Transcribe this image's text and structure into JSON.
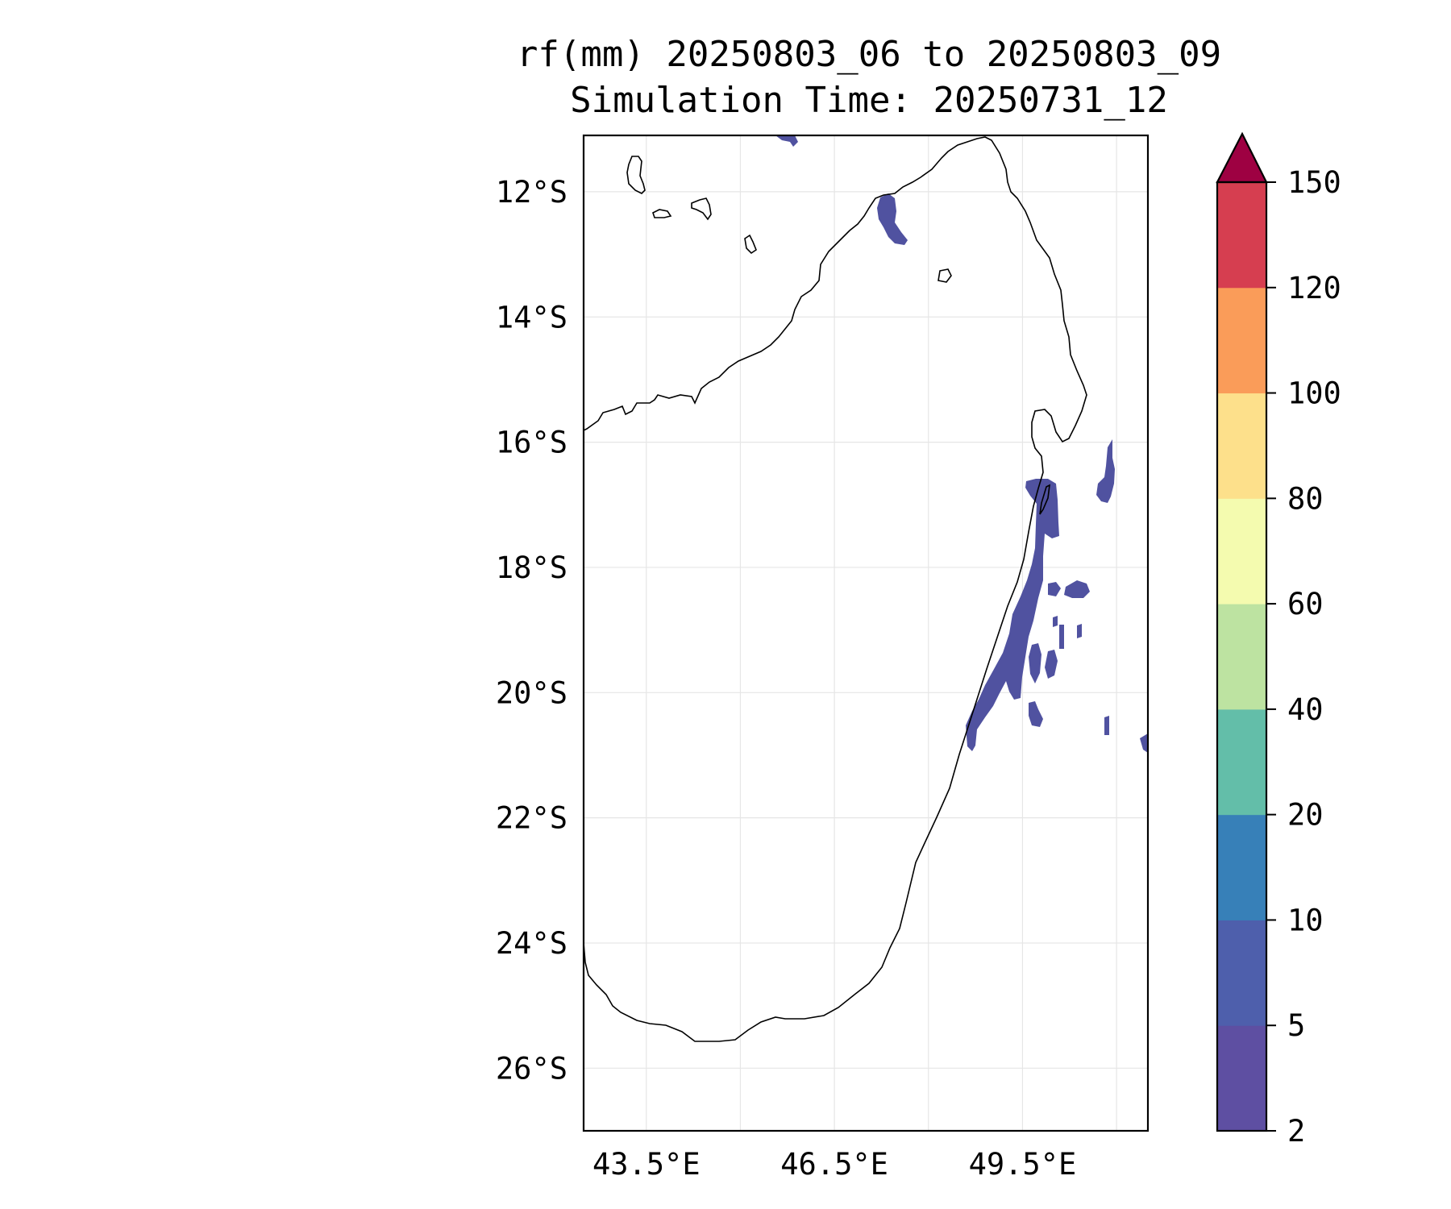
{
  "title_line1": "rf(mm) 20250803_06 to 20250803_09",
  "title_line2": "Simulation Time: 20250731_12",
  "map": {
    "lon_range": [
      42.5,
      51.5
    ],
    "lat_range": [
      -27.0,
      -11.1
    ],
    "lat_ticks": [
      {
        "value": -12,
        "label": "12°S"
      },
      {
        "value": -14,
        "label": "14°S"
      },
      {
        "value": -16,
        "label": "16°S"
      },
      {
        "value": -18,
        "label": "18°S"
      },
      {
        "value": -20,
        "label": "20°S"
      },
      {
        "value": -22,
        "label": "22°S"
      },
      {
        "value": -24,
        "label": "24°S"
      },
      {
        "value": -26,
        "label": "26°S"
      }
    ],
    "lon_ticks": [
      {
        "value": 43.5,
        "label": "43.5°E"
      },
      {
        "value": 46.5,
        "label": "46.5°E"
      },
      {
        "value": 49.5,
        "label": "49.5°E"
      }
    ],
    "grid_lons": [
      43.5,
      45.0,
      46.5,
      48.0,
      49.5,
      51.0
    ],
    "grid": true,
    "coastline_color": "#000000",
    "rain_fill_color": "#5052a0"
  },
  "colorbar": {
    "units": "mm",
    "extend": "max",
    "levels": [
      {
        "value": "2",
        "color": "#5e4fa2"
      },
      {
        "value": "5",
        "color": "#4e5fac"
      },
      {
        "value": "10",
        "color": "#3780b8"
      },
      {
        "value": "20",
        "color": "#63bea9"
      },
      {
        "value": "40",
        "color": "#bde3a1"
      },
      {
        "value": "60",
        "color": "#f4fbaf"
      },
      {
        "value": "80",
        "color": "#fde08b"
      },
      {
        "value": "100",
        "color": "#fa9c59"
      },
      {
        "value": "120",
        "color": "#d63e50"
      },
      {
        "value": "150",
        "color": "#9e0142"
      }
    ]
  }
}
